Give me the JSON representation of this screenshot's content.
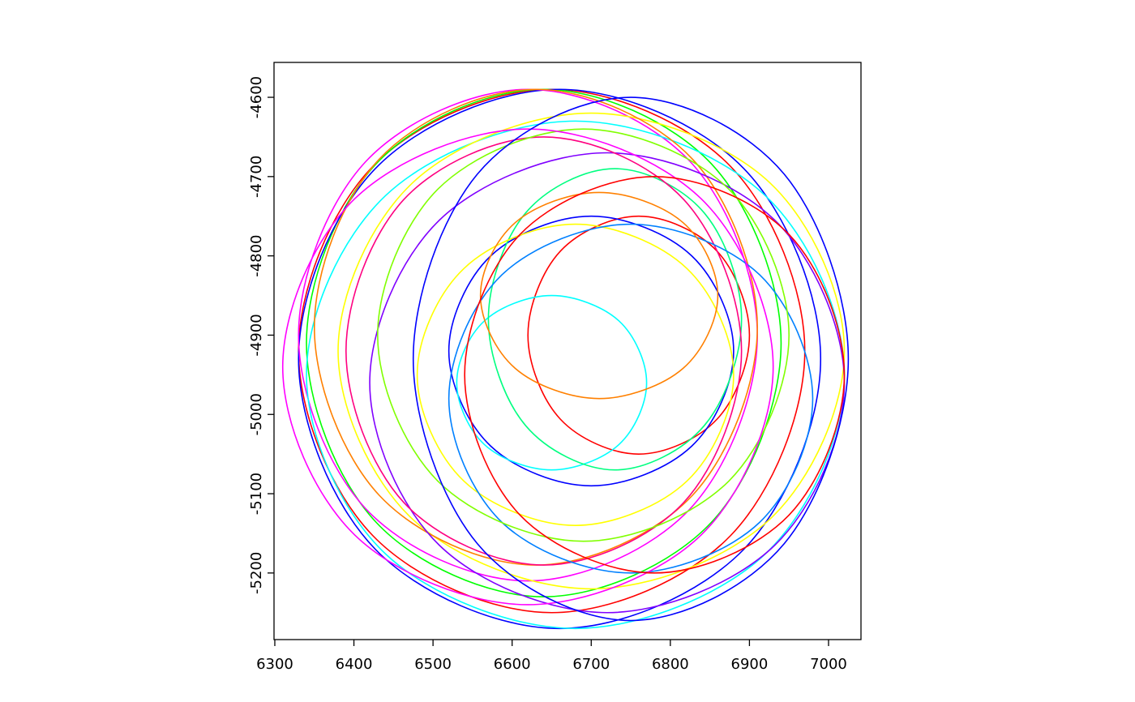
{
  "chart_data": {
    "type": "loops",
    "xlim": [
      6299,
      7041
    ],
    "ylim": [
      -5284,
      -4556
    ],
    "xticks": [
      6300,
      6400,
      6500,
      6600,
      6700,
      6800,
      6900,
      7000
    ],
    "yticks": [
      -5200,
      -5100,
      -5000,
      -4900,
      -4800,
      -4700,
      -4600
    ],
    "series": [
      {
        "color": "#ff0000",
        "x": [
          6970,
          6876,
          6650,
          6424,
          6330,
          6424,
          6650,
          6876
        ],
        "y": [
          -4920,
          -4687,
          -4590,
          -4687,
          -4920,
          -5153,
          -5250,
          -5153
        ]
      },
      {
        "color": "#00ff00",
        "x": [
          6940,
          6852,
          6640,
          6428,
          6340,
          6428,
          6640,
          6852
        ],
        "y": [
          -4910,
          -4684,
          -4590,
          -4684,
          -4910,
          -5136,
          -5230,
          -5136
        ]
      },
      {
        "color": "#0000ff",
        "x": [
          6990,
          6893,
          6660,
          6427,
          6330,
          6427,
          6660,
          6893
        ],
        "y": [
          -4930,
          -4690,
          -4590,
          -4690,
          -4930,
          -5170,
          -5270,
          -5170
        ]
      },
      {
        "color": "#ff00ff",
        "x": [
          6910,
          6825,
          6620,
          6415,
          6330,
          6415,
          6620,
          6825
        ],
        "y": [
          -4900,
          -4681,
          -4590,
          -4681,
          -4900,
          -5119,
          -5210,
          -5119
        ]
      },
      {
        "color": "#00ffff",
        "x": [
          7020,
          6920,
          6680,
          6440,
          6340,
          6440,
          6680,
          6920
        ],
        "y": [
          -4950,
          -4724,
          -4630,
          -4724,
          -4950,
          -5176,
          -5270,
          -5176
        ]
      },
      {
        "color": "#ffff00",
        "x": [
          7020,
          6926,
          6700,
          6474,
          6380,
          6474,
          6700,
          6926
        ],
        "y": [
          -4920,
          -4708,
          -4620,
          -4708,
          -4920,
          -5132,
          -5220,
          -5132
        ]
      },
      {
        "color": "#ff8000",
        "x": [
          6910,
          6828,
          6630,
          6432,
          6350,
          6432,
          6630,
          6828
        ],
        "y": [
          -4890,
          -4678,
          -4590,
          -4678,
          -4890,
          -5102,
          -5190,
          -5102
        ]
      },
      {
        "color": "#8000ff",
        "x": [
          7020,
          6932,
          6720,
          6508,
          6420,
          6508,
          6720,
          6932
        ],
        "y": [
          -4960,
          -4755,
          -4670,
          -4755,
          -4960,
          -5165,
          -5250,
          -5165
        ]
      },
      {
        "color": "#ff0000",
        "x": [
          6900,
          6859,
          6760,
          6661,
          6620,
          6661,
          6760,
          6859
        ],
        "y": [
          -4900,
          -4794,
          -4750,
          -4794,
          -4900,
          -5006,
          -5050,
          -5006
        ]
      },
      {
        "color": "#0000ff",
        "x": [
          6880,
          6827,
          6700,
          6573,
          6520,
          6573,
          6700,
          6827
        ],
        "y": [
          -4920,
          -4800,
          -4750,
          -4800,
          -4920,
          -5040,
          -5090,
          -5040
        ]
      },
      {
        "color": "#00ffff",
        "x": [
          6770,
          6735,
          6650,
          6565,
          6530,
          6565,
          6650,
          6735
        ],
        "y": [
          -4960,
          -4882,
          -4850,
          -4882,
          -4960,
          -5038,
          -5070,
          -5038
        ]
      },
      {
        "color": "#00ff80",
        "x": [
          6890,
          6843,
          6730,
          6617,
          6570,
          6617,
          6730,
          6843
        ],
        "y": [
          -4880,
          -4746,
          -4690,
          -4746,
          -4880,
          -5014,
          -5070,
          -5014
        ]
      },
      {
        "color": "#ffff00",
        "x": [
          6880,
          6821,
          6680,
          6539,
          6480,
          6539,
          6680,
          6821
        ],
        "y": [
          -4950,
          -4816,
          -4760,
          -4816,
          -4950,
          -5084,
          -5140,
          -5084
        ]
      },
      {
        "color": "#ff0080",
        "x": [
          6890,
          6817,
          6640,
          6463,
          6390,
          6463,
          6640,
          6817
        ],
        "y": [
          -4920,
          -4729,
          -4650,
          -4729,
          -4920,
          -5111,
          -5190,
          -5111
        ]
      },
      {
        "color": "#0080ff",
        "x": [
          6980,
          6913,
          6750,
          6587,
          6520,
          6587,
          6750,
          6913
        ],
        "y": [
          -4980,
          -4824,
          -4760,
          -4824,
          -4980,
          -5136,
          -5200,
          -5136
        ]
      },
      {
        "color": "#80ff00",
        "x": [
          6950,
          6874,
          6690,
          6506,
          6430,
          6506,
          6690,
          6874
        ],
        "y": [
          -4900,
          -4716,
          -4640,
          -4716,
          -4900,
          -5084,
          -5160,
          -5084
        ]
      },
      {
        "color": "#ff8000",
        "x": [
          6860,
          6816,
          6710,
          6604,
          6560,
          6604,
          6710,
          6816
        ],
        "y": [
          -4850,
          -4758,
          -4720,
          -4758,
          -4850,
          -4942,
          -4980,
          -4942
        ]
      },
      {
        "color": "#ff00ff",
        "x": [
          6930,
          6839,
          6620,
          6401,
          6310,
          6401,
          6620,
          6839
        ],
        "y": [
          -4940,
          -4728,
          -4640,
          -4728,
          -4940,
          -5152,
          -5240,
          -5152
        ]
      },
      {
        "color": "#ff0000",
        "x": [
          7020,
          6950,
          6780,
          6610,
          6540,
          6610,
          6780,
          6950
        ],
        "y": [
          -4950,
          -4773,
          -4700,
          -4773,
          -4950,
          -5127,
          -5200,
          -5127
        ]
      },
      {
        "color": "#0000ff",
        "x": [
          7025,
          6944,
          6750,
          6556,
          6475,
          6556,
          6750,
          6944
        ],
        "y": [
          -4930,
          -4697,
          -4600,
          -4697,
          -4930,
          -5163,
          -5260,
          -5163
        ]
      }
    ]
  }
}
